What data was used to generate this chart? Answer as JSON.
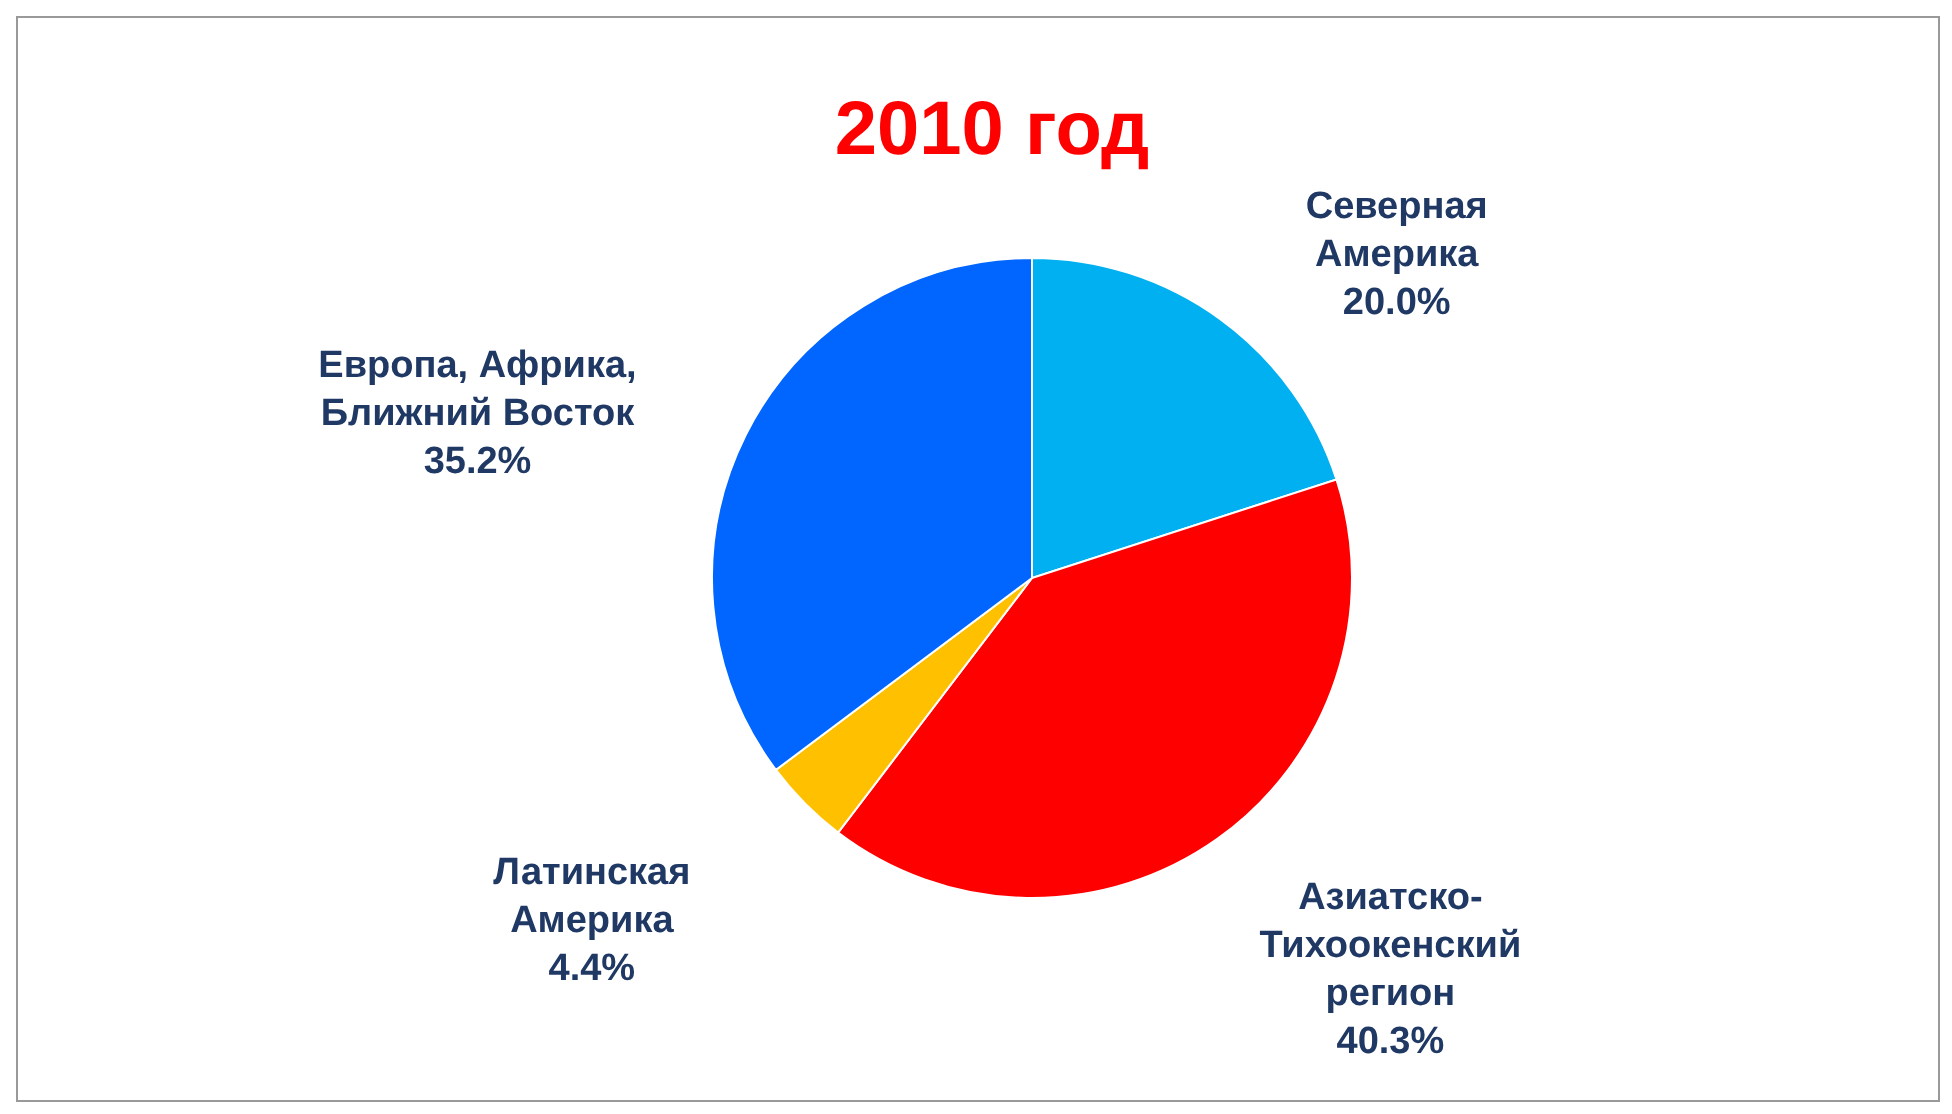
{
  "chart_data": {
    "type": "pie",
    "title": "2010 год",
    "categories": [
      "Северная\nАмерика",
      "Азиатско-\nТихоокенский\nрегион",
      "Латинская\nАмерика",
      "Европа, Африка,\nБлижний Восток"
    ],
    "values": [
      20.0,
      40.3,
      4.4,
      35.2
    ],
    "colors": [
      "#00b0f0",
      "#ff0000",
      "#ffc000",
      "#0066ff"
    ],
    "value_labels": [
      "20.0%",
      "40.3%",
      "4.4%",
      "35.2%"
    ]
  }
}
